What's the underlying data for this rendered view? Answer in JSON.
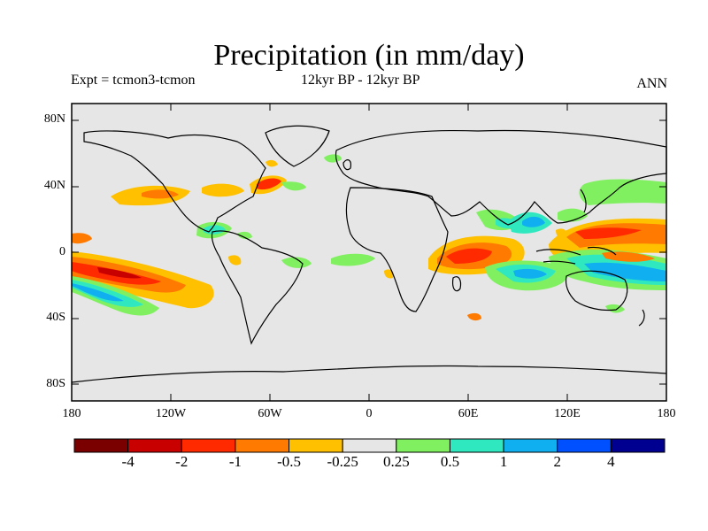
{
  "title": "Precipitation (in mm/day)",
  "left_label": "Expt = tcmon3-tcmon",
  "center_label": "12kyr BP - 12kyr BP",
  "right_label": "ANN",
  "lat_ticks": [
    "80N",
    "40N",
    "0",
    "40S",
    "80S"
  ],
  "lon_ticks": [
    "180",
    "120W",
    "60W",
    "0",
    "60E",
    "120E",
    "180"
  ],
  "colorbar": {
    "colors": [
      "#7a0000",
      "#c80000",
      "#ff2a00",
      "#ff7a00",
      "#ffc000",
      "#e6e6e6",
      "#80f060",
      "#30e8c0",
      "#10b0f0",
      "#0050ff",
      "#000090"
    ],
    "labels": [
      "-4",
      "-2",
      "-1",
      "-0.5",
      "-0.25",
      "0.25",
      "0.5",
      "1",
      "2",
      "4"
    ]
  }
}
